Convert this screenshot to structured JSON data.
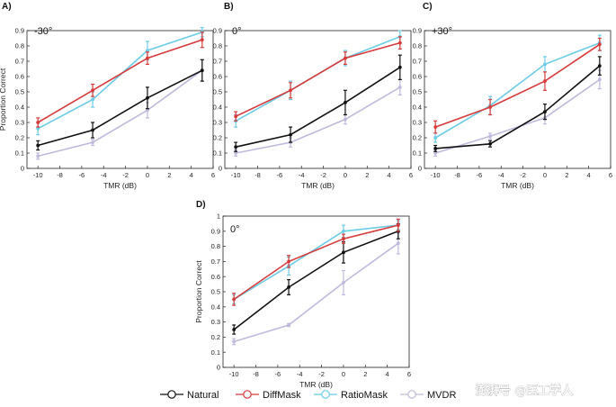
{
  "colors": {
    "Natural": "#111111",
    "DiffMask": "#d63a3a",
    "RatioMask": "#6ccbe6",
    "MVDR": "#c1b9dd"
  },
  "legend": {
    "items": [
      "Natural",
      "DiffMask",
      "RatioMask",
      "MVDR"
    ]
  },
  "watermark": "澎湃号 @医工学人",
  "chart_data": [
    {
      "type": "line",
      "panel": "A)",
      "annotation": "-30°",
      "xlabel": "TMR (dB)",
      "ylabel": "Proportion Correct",
      "xlim": [
        -11,
        6
      ],
      "ylim": [
        0,
        0.9
      ],
      "xticks": [
        -10,
        -8,
        -6,
        -4,
        -2,
        0,
        2,
        4,
        6
      ],
      "yticks": [
        0,
        0.1,
        0.2,
        0.3,
        0.4,
        0.5,
        0.6,
        0.7,
        0.8,
        0.9
      ],
      "x": [
        -10,
        -5,
        0,
        5
      ],
      "series": [
        {
          "name": "Natural",
          "values": [
            0.15,
            0.25,
            0.46,
            0.64
          ],
          "err": [
            0.03,
            0.05,
            0.07,
            0.07
          ]
        },
        {
          "name": "DiffMask",
          "values": [
            0.3,
            0.51,
            0.72,
            0.84
          ],
          "err": [
            0.03,
            0.04,
            0.04,
            0.05
          ]
        },
        {
          "name": "RatioMask",
          "values": [
            0.26,
            0.45,
            0.77,
            0.89
          ],
          "err": [
            0.04,
            0.05,
            0.06,
            0.03
          ]
        },
        {
          "name": "MVDR",
          "values": [
            0.08,
            0.17,
            0.38,
            0.64
          ],
          "err": [
            0.02,
            0.02,
            0.05,
            0.07
          ]
        }
      ]
    },
    {
      "type": "line",
      "panel": "B)",
      "annotation": "0°",
      "xlabel": "TMR (dB)",
      "ylabel": "",
      "xlim": [
        -11,
        6
      ],
      "ylim": [
        0,
        0.9
      ],
      "xticks": [
        -10,
        -8,
        -6,
        -4,
        -2,
        0,
        2,
        4,
        6
      ],
      "yticks": [
        0,
        0.1,
        0.2,
        0.3,
        0.4,
        0.5,
        0.6,
        0.7,
        0.8,
        0.9
      ],
      "x": [
        -10,
        -5,
        0,
        5
      ],
      "series": [
        {
          "name": "Natural",
          "values": [
            0.14,
            0.22,
            0.43,
            0.66
          ],
          "err": [
            0.03,
            0.05,
            0.08,
            0.08
          ]
        },
        {
          "name": "DiffMask",
          "values": [
            0.34,
            0.51,
            0.72,
            0.82
          ],
          "err": [
            0.03,
            0.05,
            0.04,
            0.04
          ]
        },
        {
          "name": "RatioMask",
          "values": [
            0.31,
            0.51,
            0.72,
            0.86
          ],
          "err": [
            0.04,
            0.06,
            0.05,
            0.04
          ]
        },
        {
          "name": "MVDR",
          "values": [
            0.1,
            0.17,
            0.32,
            0.53
          ],
          "err": [
            0.02,
            0.03,
            0.03,
            0.05
          ]
        }
      ]
    },
    {
      "type": "line",
      "panel": "C)",
      "annotation": "+30°",
      "xlabel": "TMR (dB)",
      "ylabel": "",
      "xlim": [
        -11,
        6
      ],
      "ylim": [
        0,
        0.9
      ],
      "xticks": [
        -10,
        -8,
        -6,
        -4,
        -2,
        0,
        2,
        4,
        6
      ],
      "yticks": [
        0,
        0.1,
        0.2,
        0.3,
        0.4,
        0.5,
        0.6,
        0.7,
        0.8,
        0.9
      ],
      "x": [
        -10,
        -5,
        0,
        5
      ],
      "series": [
        {
          "name": "Natural",
          "values": [
            0.13,
            0.16,
            0.37,
            0.67
          ],
          "err": [
            0.02,
            0.02,
            0.05,
            0.06
          ]
        },
        {
          "name": "DiffMask",
          "values": [
            0.27,
            0.4,
            0.57,
            0.81
          ],
          "err": [
            0.04,
            0.05,
            0.06,
            0.04
          ]
        },
        {
          "name": "RatioMask",
          "values": [
            0.2,
            0.41,
            0.68,
            0.82
          ],
          "err": [
            0.03,
            0.06,
            0.05,
            0.05
          ]
        },
        {
          "name": "MVDR",
          "values": [
            0.1,
            0.21,
            0.33,
            0.58
          ],
          "err": [
            0.02,
            0.02,
            0.04,
            0.06
          ]
        }
      ]
    },
    {
      "type": "line",
      "panel": "D)",
      "annotation": "0°",
      "xlabel": "TMR (dB)",
      "ylabel": "Proportion Correct",
      "xlim": [
        -11,
        6
      ],
      "ylim": [
        0,
        1
      ],
      "xticks": [
        -10,
        -8,
        -6,
        -4,
        -2,
        0,
        2,
        4,
        6
      ],
      "yticks": [
        0,
        0.1,
        0.2,
        0.3,
        0.4,
        0.5,
        0.6,
        0.7,
        0.8,
        0.9,
        1
      ],
      "x": [
        -10,
        -5,
        0,
        5
      ],
      "series": [
        {
          "name": "Natural",
          "values": [
            0.25,
            0.53,
            0.76,
            0.9
          ],
          "err": [
            0.03,
            0.05,
            0.07,
            0.05
          ]
        },
        {
          "name": "DiffMask",
          "values": [
            0.45,
            0.7,
            0.85,
            0.94
          ],
          "err": [
            0.04,
            0.04,
            0.03,
            0.04
          ]
        },
        {
          "name": "RatioMask",
          "values": [
            0.45,
            0.67,
            0.9,
            0.94
          ],
          "err": [
            0.03,
            0.06,
            0.04,
            0.03
          ]
        },
        {
          "name": "MVDR",
          "values": [
            0.17,
            0.28,
            0.56,
            0.82
          ],
          "err": [
            0.02,
            0.01,
            0.08,
            0.07
          ]
        }
      ]
    }
  ]
}
